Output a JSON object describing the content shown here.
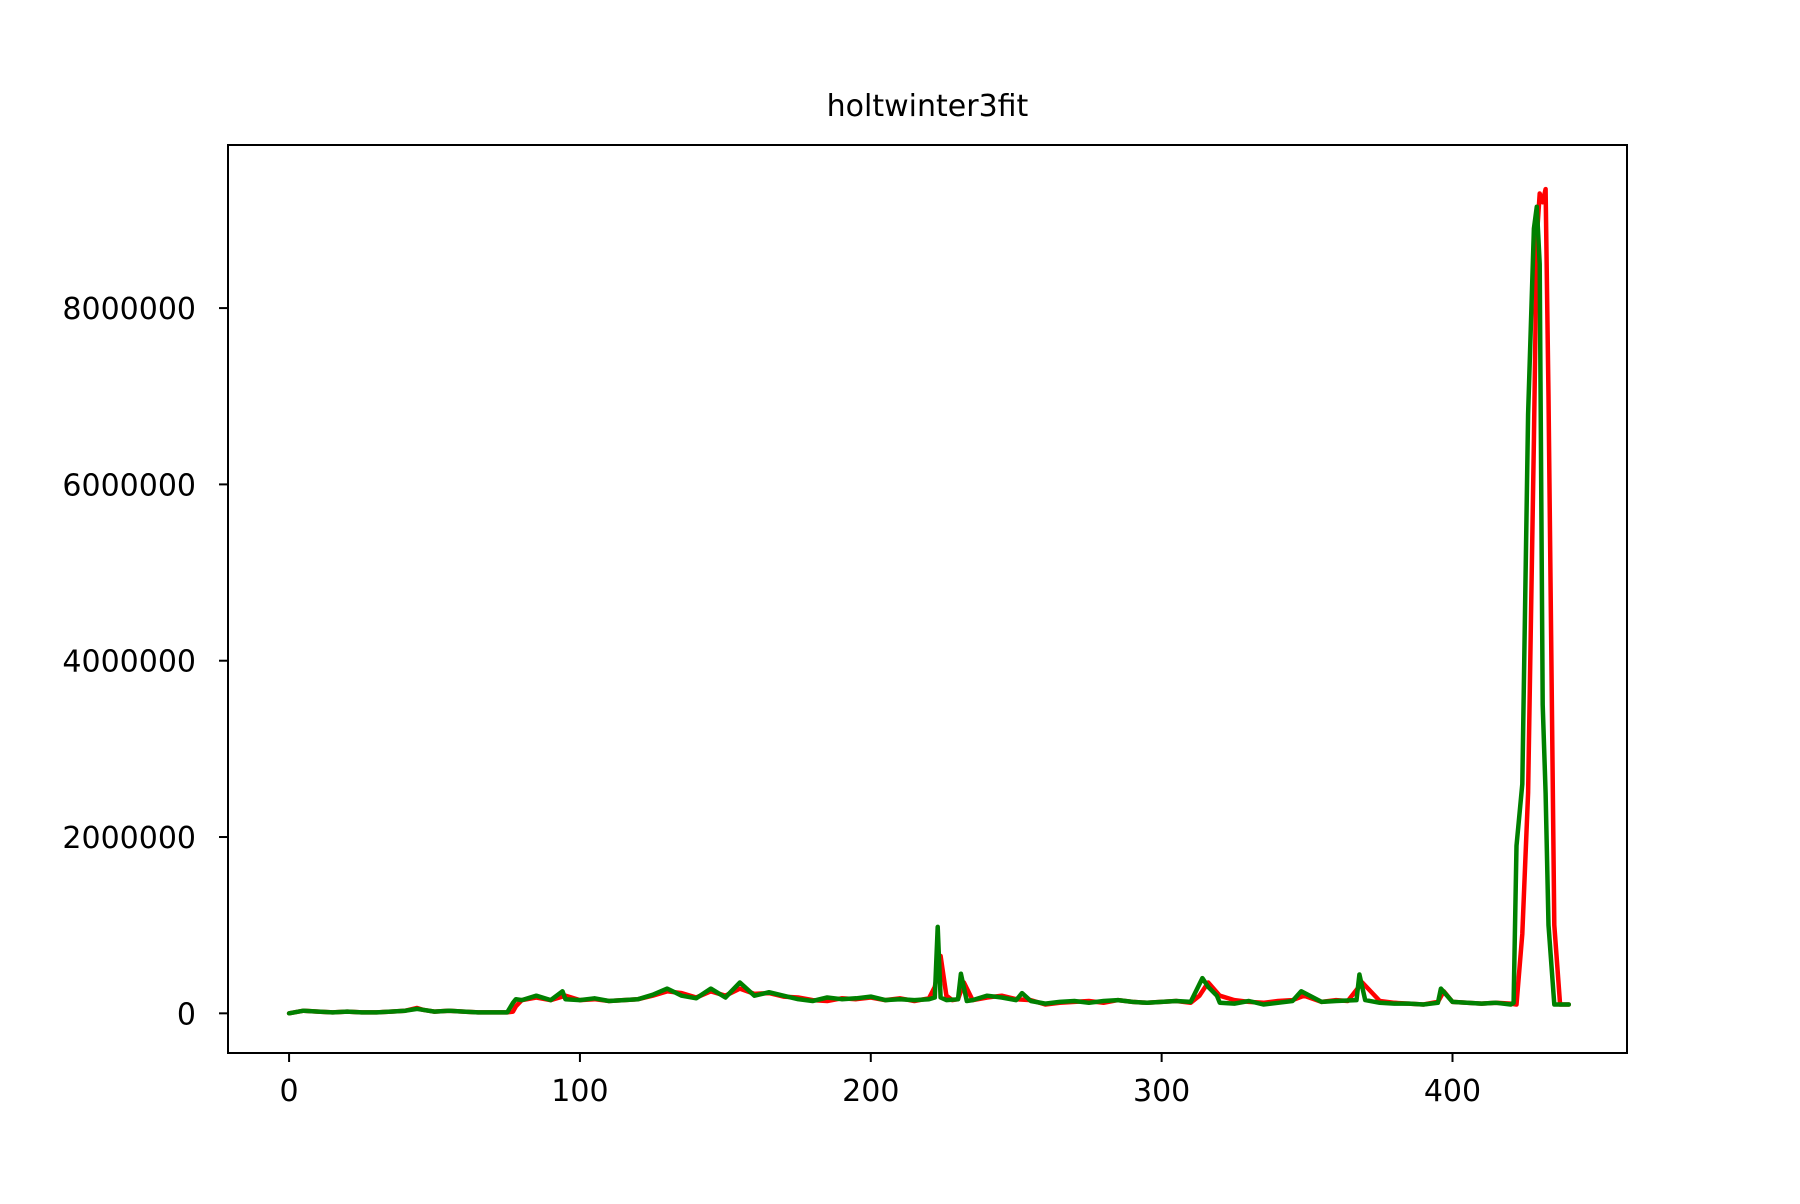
{
  "chart_data": {
    "type": "line",
    "title": "holtwinter3fit",
    "xlabel": "",
    "ylabel": "",
    "xlim": [
      -21,
      460
    ],
    "ylim": [
      -450000,
      9850000
    ],
    "xticks": [
      0,
      100,
      200,
      300,
      400
    ],
    "xtick_labels": [
      "0",
      "100",
      "200",
      "300",
      "400"
    ],
    "yticks": [
      0,
      2000000,
      4000000,
      6000000,
      8000000
    ],
    "ytick_labels": [
      "0",
      "2000000",
      "4000000",
      "6000000",
      "8000000"
    ],
    "grid": false,
    "series": [
      {
        "color": "#ff0000",
        "x": [
          0,
          5,
          10,
          15,
          20,
          25,
          30,
          35,
          40,
          44,
          46,
          50,
          55,
          60,
          65,
          70,
          75,
          77,
          78,
          80,
          85,
          90,
          95,
          100,
          105,
          110,
          115,
          120,
          125,
          130,
          135,
          140,
          145,
          150,
          155,
          160,
          165,
          170,
          175,
          180,
          185,
          190,
          195,
          200,
          205,
          210,
          215,
          220,
          222,
          224,
          226,
          228,
          230,
          232,
          235,
          240,
          245,
          250,
          255,
          260,
          265,
          270,
          275,
          280,
          285,
          290,
          295,
          300,
          305,
          310,
          313,
          316,
          320,
          325,
          330,
          335,
          340,
          345,
          349,
          355,
          360,
          364,
          369,
          375,
          380,
          385,
          390,
          395,
          397,
          400,
          405,
          410,
          415,
          420,
          422,
          424,
          426,
          428,
          429,
          430,
          431,
          432,
          433,
          434,
          435,
          437,
          440
        ],
        "y": [
          0,
          30000,
          20000,
          10000,
          20000,
          10000,
          10000,
          20000,
          30000,
          60000,
          40000,
          20000,
          30000,
          20000,
          10000,
          10000,
          10000,
          20000,
          80000,
          150000,
          180000,
          150000,
          200000,
          150000,
          160000,
          140000,
          150000,
          160000,
          200000,
          250000,
          230000,
          180000,
          250000,
          200000,
          280000,
          220000,
          230000,
          190000,
          180000,
          150000,
          140000,
          170000,
          160000,
          180000,
          150000,
          170000,
          140000,
          170000,
          300000,
          650000,
          200000,
          150000,
          160000,
          350000,
          150000,
          180000,
          200000,
          160000,
          150000,
          100000,
          120000,
          130000,
          140000,
          120000,
          150000,
          130000,
          120000,
          130000,
          140000,
          120000,
          200000,
          350000,
          200000,
          150000,
          130000,
          120000,
          140000,
          150000,
          200000,
          130000,
          150000,
          140000,
          350000,
          140000,
          120000,
          110000,
          100000,
          130000,
          250000,
          130000,
          120000,
          110000,
          120000,
          110000,
          100000,
          900000,
          2500000,
          6500000,
          8800000,
          9300000,
          9200000,
          9350000,
          7000000,
          4000000,
          1000000,
          100000,
          100000
        ]
      },
      {
        "color": "#008000",
        "x": [
          0,
          5,
          10,
          15,
          20,
          25,
          30,
          35,
          40,
          44,
          46,
          50,
          55,
          60,
          65,
          70,
          75,
          77,
          78,
          80,
          85,
          90,
          94,
          95,
          100,
          105,
          110,
          115,
          120,
          125,
          130,
          135,
          140,
          145,
          150,
          155,
          160,
          165,
          170,
          175,
          180,
          185,
          190,
          195,
          200,
          205,
          210,
          215,
          220,
          222,
          223,
          224,
          226,
          230,
          231,
          233,
          235,
          240,
          245,
          250,
          252,
          255,
          260,
          265,
          270,
          275,
          280,
          285,
          290,
          295,
          300,
          305,
          310,
          314,
          316,
          319,
          320,
          325,
          330,
          335,
          340,
          345,
          348,
          355,
          360,
          367,
          368,
          370,
          375,
          380,
          385,
          390,
          395,
          396,
          400,
          405,
          410,
          415,
          420,
          421,
          422,
          424,
          426,
          428,
          429,
          430,
          431,
          432,
          433,
          435,
          437,
          440
        ],
        "y": [
          0,
          30000,
          20000,
          10000,
          20000,
          10000,
          10000,
          20000,
          30000,
          50000,
          40000,
          20000,
          30000,
          20000,
          10000,
          10000,
          10000,
          120000,
          160000,
          150000,
          200000,
          150000,
          250000,
          160000,
          150000,
          170000,
          140000,
          150000,
          160000,
          210000,
          280000,
          200000,
          170000,
          280000,
          180000,
          350000,
          200000,
          240000,
          200000,
          160000,
          140000,
          180000,
          160000,
          170000,
          190000,
          150000,
          160000,
          150000,
          160000,
          180000,
          980000,
          180000,
          150000,
          160000,
          450000,
          140000,
          150000,
          200000,
          180000,
          150000,
          230000,
          140000,
          110000,
          130000,
          140000,
          120000,
          140000,
          150000,
          130000,
          120000,
          130000,
          140000,
          130000,
          400000,
          300000,
          200000,
          120000,
          110000,
          140000,
          100000,
          120000,
          140000,
          250000,
          130000,
          140000,
          150000,
          440000,
          150000,
          120000,
          110000,
          110000,
          100000,
          120000,
          280000,
          130000,
          120000,
          110000,
          120000,
          100000,
          120000,
          1900000,
          2600000,
          6800000,
          8900000,
          9150000,
          8500000,
          3500000,
          2500000,
          1000000,
          100000,
          100000,
          100000
        ]
      }
    ]
  }
}
